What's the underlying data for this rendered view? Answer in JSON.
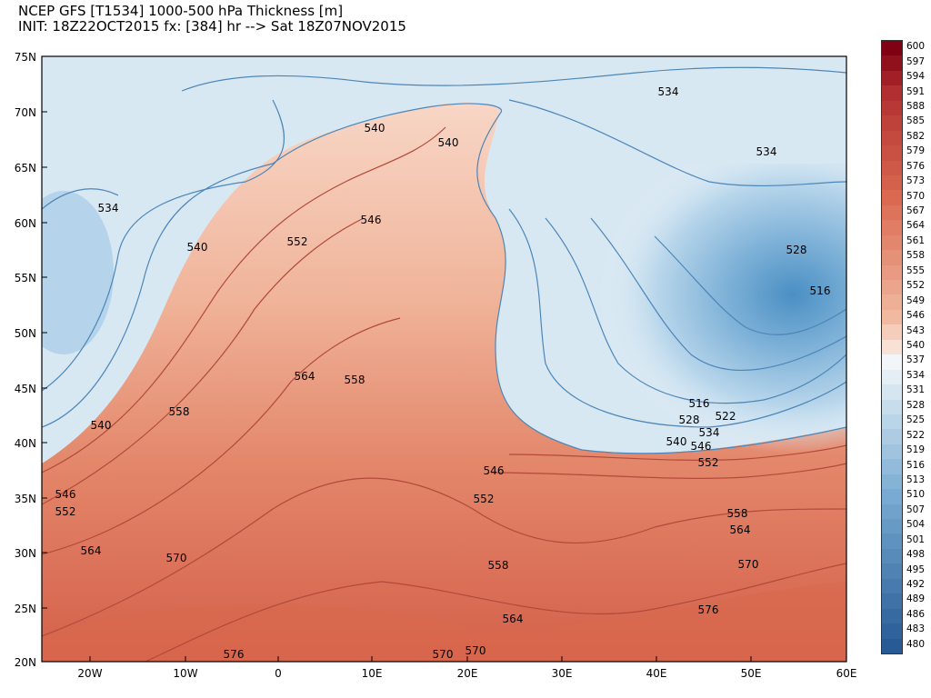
{
  "title": {
    "line1": "NCEP GFS [T1534] 1000-500 hPa Thickness [m]",
    "line2": "INIT: 18Z22OCT2015 fx: [384] hr --> Sat 18Z07NOV2015"
  },
  "axes": {
    "lat_labels": [
      "75N",
      "70N",
      "65N",
      "60N",
      "55N",
      "50N",
      "45N",
      "40N",
      "35N",
      "30N",
      "25N",
      "20N"
    ],
    "lon_labels": [
      "20W",
      "10W",
      "0",
      "10E",
      "20E",
      "30E",
      "40E",
      "50E",
      "60E"
    ]
  },
  "colorbar": {
    "levels": [
      "600",
      "597",
      "594",
      "591",
      "588",
      "585",
      "582",
      "579",
      "576",
      "573",
      "570",
      "567",
      "564",
      "561",
      "558",
      "555",
      "552",
      "549",
      "546",
      "543",
      "540",
      "537",
      "534",
      "531",
      "528",
      "525",
      "522",
      "519",
      "516",
      "513",
      "510",
      "507",
      "504",
      "501",
      "498",
      "495",
      "492",
      "489",
      "486",
      "483",
      "480"
    ]
  },
  "contour_labels": [
    {
      "text": "534"
    },
    {
      "text": "540"
    },
    {
      "text": "540"
    },
    {
      "text": "534"
    },
    {
      "text": "534"
    },
    {
      "text": "540"
    },
    {
      "text": "546"
    },
    {
      "text": "552"
    },
    {
      "text": "528"
    },
    {
      "text": "516"
    },
    {
      "text": "564"
    },
    {
      "text": "558"
    },
    {
      "text": "540"
    },
    {
      "text": "558"
    },
    {
      "text": "516"
    },
    {
      "text": "528"
    },
    {
      "text": "522"
    },
    {
      "text": "534"
    },
    {
      "text": "540"
    },
    {
      "text": "546"
    },
    {
      "text": "552"
    },
    {
      "text": "546"
    },
    {
      "text": "546"
    },
    {
      "text": "552"
    },
    {
      "text": "552"
    },
    {
      "text": "564"
    },
    {
      "text": "570"
    },
    {
      "text": "558"
    },
    {
      "text": "558"
    },
    {
      "text": "564"
    },
    {
      "text": "570"
    },
    {
      "text": "564"
    },
    {
      "text": "576"
    },
    {
      "text": "576"
    },
    {
      "text": "570"
    },
    {
      "text": "570"
    }
  ],
  "colors": {
    "cold": "#4f97c9",
    "cool": "#bcd9ec",
    "neutral": "#f4f7fa",
    "warm": "#f0bba3",
    "hot": "#d9684a"
  }
}
